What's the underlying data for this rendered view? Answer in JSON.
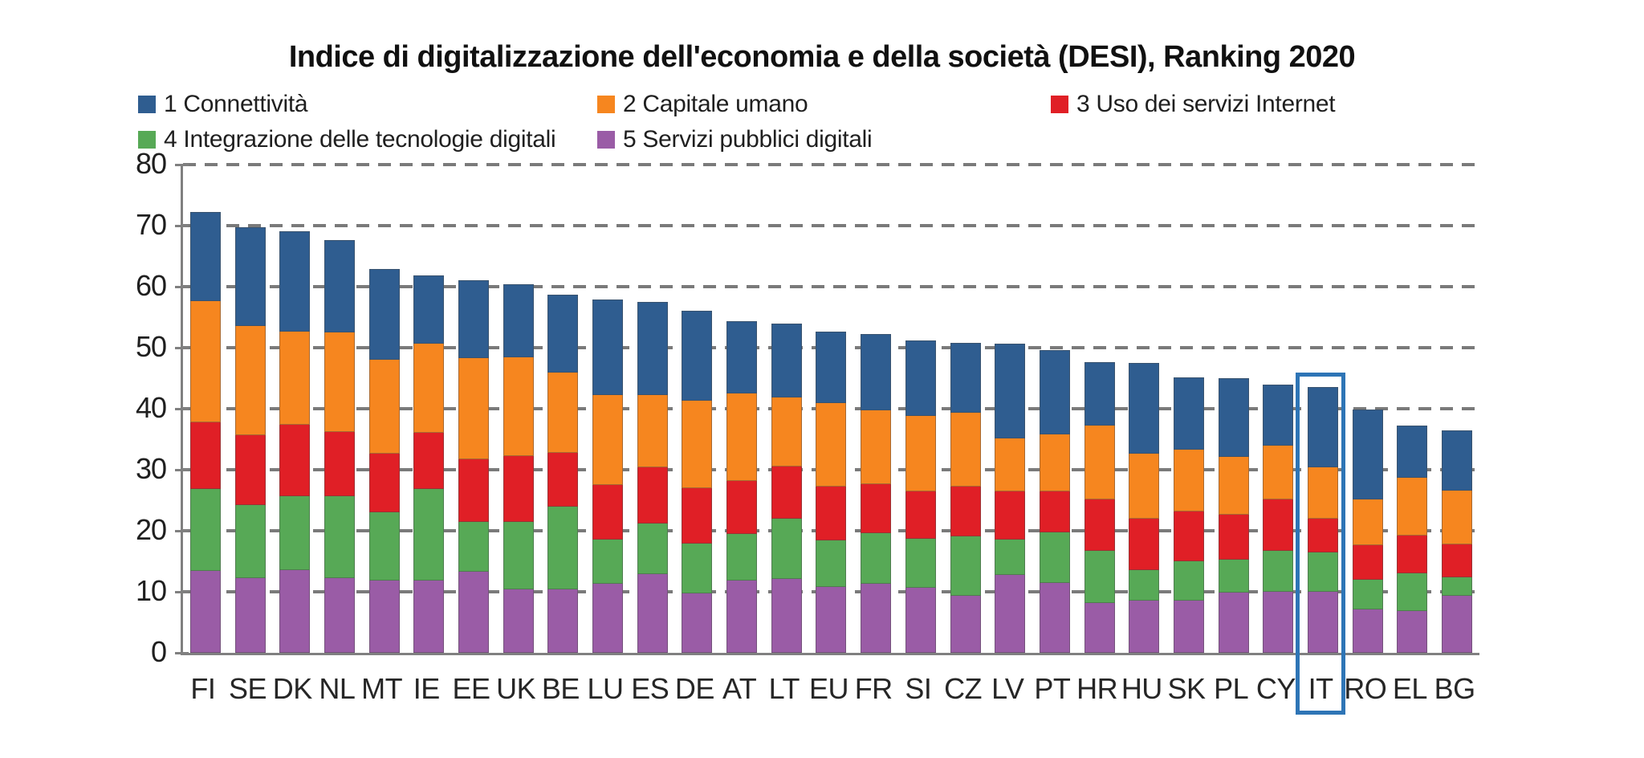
{
  "title": "Indice di digitalizzazione dell'economia e della società (DESI), Ranking 2020",
  "legend": [
    {
      "label": "1 Connettività",
      "color": "#2F5D90"
    },
    {
      "label": "2 Capitale umano",
      "color": "#F6861F"
    },
    {
      "label": "3 Uso dei servizi Internet",
      "color": "#E01F26"
    },
    {
      "label": "4 Integrazione delle tecnologie digitali",
      "color": "#57A956"
    },
    {
      "label": "5 Servizi pubblici digitali",
      "color": "#9A5CA6"
    }
  ],
  "chart_data": {
    "type": "bar",
    "subtype": "stacked-vertical",
    "title": "Indice di digitalizzazione dell'economia e della società (DESI), Ranking 2020",
    "xlabel": "",
    "ylabel": "",
    "ylim": [
      0,
      80
    ],
    "yticks": [
      0,
      10,
      20,
      30,
      40,
      50,
      60,
      70,
      80
    ],
    "grid": "horizontal-dashed",
    "legend_position": "top-left-two-rows",
    "stack_order_bottom_to_top": [
      "5 Servizi pubblici digitali",
      "4 Integrazione delle tecnologie digitali",
      "3 Uso dei servizi Internet",
      "2 Capitale umano",
      "1 Connettività"
    ],
    "categories": [
      "FI",
      "SE",
      "DK",
      "NL",
      "MT",
      "IE",
      "EE",
      "UK",
      "BE",
      "LU",
      "ES",
      "DE",
      "AT",
      "LT",
      "EU",
      "FR",
      "SI",
      "CZ",
      "LV",
      "PT",
      "HR",
      "HU",
      "SK",
      "PL",
      "CY",
      "IT",
      "RO",
      "EL",
      "BG"
    ],
    "series": [
      {
        "name": "1 Connettività",
        "color": "#2F5D90",
        "values": [
          14.6,
          16.2,
          16.4,
          15.2,
          14.9,
          11.2,
          12.8,
          12.0,
          12.8,
          15.6,
          15.3,
          14.8,
          11.8,
          12.0,
          11.7,
          12.5,
          12.4,
          11.4,
          15.6,
          13.8,
          10.4,
          14.9,
          11.9,
          12.9,
          9.9,
          13.2,
          14.7,
          8.6,
          9.8
        ]
      },
      {
        "name": "2 Capitale umano",
        "color": "#F6861F",
        "values": [
          19.9,
          17.8,
          15.3,
          16.3,
          15.4,
          14.5,
          16.6,
          16.1,
          13.1,
          14.8,
          11.8,
          14.3,
          14.3,
          11.4,
          13.7,
          12.0,
          12.3,
          12.1,
          8.6,
          9.3,
          12.1,
          10.6,
          10.1,
          9.4,
          8.8,
          8.4,
          7.6,
          9.5,
          8.8
        ]
      },
      {
        "name": "3 Uso dei servizi Internet",
        "color": "#E01F26",
        "values": [
          11.0,
          11.5,
          11.7,
          10.6,
          9.6,
          9.2,
          10.3,
          10.9,
          8.9,
          8.9,
          9.2,
          9.1,
          8.7,
          8.5,
          8.8,
          8.1,
          7.8,
          8.2,
          8.0,
          6.7,
          8.4,
          8.5,
          8.2,
          7.4,
          8.5,
          5.6,
          5.6,
          6.2,
          5.4
        ]
      },
      {
        "name": "4 Integrazione delle tecnologie digitali",
        "color": "#57A956",
        "values": [
          13.4,
          12.0,
          12.2,
          13.4,
          11.2,
          15.0,
          8.1,
          11.0,
          13.5,
          7.3,
          8.3,
          8.2,
          7.7,
          9.9,
          7.6,
          8.3,
          8.0,
          9.7,
          5.8,
          8.3,
          8.5,
          5.0,
          6.4,
          5.4,
          6.7,
          6.4,
          4.9,
          6.2,
          3.0
        ]
      },
      {
        "name": "5 Servizi pubblici digitali",
        "color": "#9A5CA6",
        "values": [
          13.4,
          12.2,
          13.5,
          12.2,
          11.8,
          11.9,
          13.3,
          10.4,
          10.4,
          11.3,
          12.9,
          9.7,
          11.8,
          12.1,
          10.8,
          11.3,
          10.7,
          9.4,
          12.7,
          11.5,
          8.2,
          8.5,
          8.6,
          9.9,
          10.0,
          10.0,
          7.1,
          6.8,
          9.4
        ]
      }
    ],
    "totals": [
      72.3,
      69.7,
      69.1,
      67.7,
      62.9,
      61.8,
      61.1,
      60.4,
      58.7,
      57.9,
      57.5,
      56.1,
      54.3,
      53.9,
      52.6,
      52.2,
      51.2,
      50.8,
      50.7,
      49.6,
      47.6,
      47.5,
      45.2,
      45.0,
      43.9,
      43.6,
      39.9,
      37.3,
      36.4
    ],
    "highlight": {
      "category": "IT",
      "box_color": "#2E75B6"
    }
  },
  "colors": {
    "gridline": "#7a7a7a",
    "axis": "#808080",
    "axis_text": "#1f1f1f",
    "category_text": "#262626"
  }
}
